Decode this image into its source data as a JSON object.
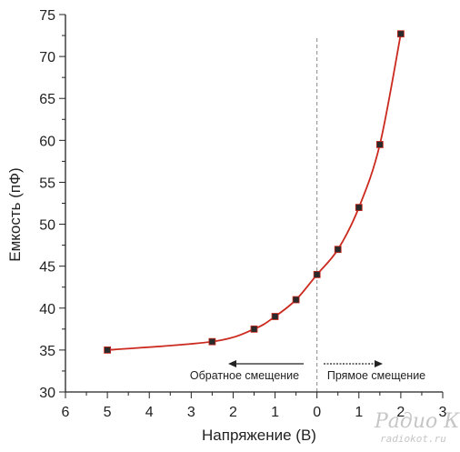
{
  "chart_data": {
    "type": "line",
    "xlabel": "Напряжение (В)",
    "ylabel": "Емкость (пФ)",
    "x_ticks": [
      "6",
      "5",
      "4",
      "3",
      "2",
      "1",
      "0",
      "1",
      "2",
      "3"
    ],
    "y_ticks": [
      "30",
      "35",
      "40",
      "45",
      "50",
      "55",
      "60",
      "65",
      "70",
      "75"
    ],
    "xlim": [
      -6,
      3
    ],
    "ylim": [
      30,
      75
    ],
    "grid": false,
    "series": [
      {
        "x": [
          -5,
          -2.5,
          -1.5,
          -1,
          -0.5,
          0,
          0.5,
          1,
          1.5,
          2
        ],
        "y": [
          35,
          36,
          37.5,
          39,
          41,
          44,
          47,
          52,
          59.5,
          72.7
        ]
      }
    ],
    "annotations": {
      "reverse": "Обратное смещение",
      "forward": "Прямое смещение"
    },
    "colors": {
      "line": "#cc2a1f",
      "marker": "#2a2a2a",
      "axis": "#222222",
      "divider": "#888888"
    }
  },
  "watermark": {
    "logo": "Радио КОТ",
    "site": "radiokot.ru"
  }
}
